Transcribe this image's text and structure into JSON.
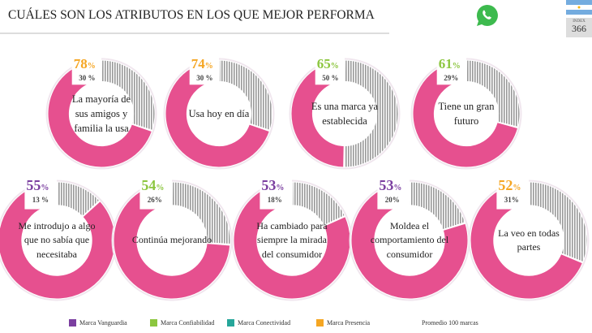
{
  "header": {
    "title": "CUÁLES SON LOS ATRIBUTOS EN LOS QUE MEJOR PERFORMA",
    "index_label": "INDEX",
    "index_value": "366"
  },
  "chart_data": {
    "type": "donut",
    "title": "CUÁLES SON LOS ATRIBUTOS EN LOS QUE MEJOR PERFORMA",
    "colors": {
      "pink": "#e6508f",
      "gray": "#aaaaaa",
      "Marca Vanguardia": "#7b3fa0",
      "Marca Confiabilidad": "#8cc63f",
      "Marca Conectividad": "#26a69a",
      "Marca Presencia": "#f5a623"
    },
    "items": [
      {
        "label": "La mayoría de sus amigos y familia la usa",
        "value": "78",
        "avg": "30",
        "avg_suffix": " %",
        "brand": "Marca Presencia"
      },
      {
        "label": "Usa hoy en día",
        "value": "74",
        "avg": "30",
        "avg_suffix": " %",
        "brand": "Marca Presencia"
      },
      {
        "label": "Es una marca ya establecida",
        "value": "65",
        "avg": "50",
        "avg_suffix": " %",
        "brand": "Marca Confiabilidad"
      },
      {
        "label": "Tiene un gran futuro",
        "value": "61",
        "avg": "29",
        "avg_suffix": "%",
        "brand": "Marca Confiabilidad"
      },
      {
        "label": "Me introdujo a algo que no sabía que necesitaba",
        "value": "55",
        "avg": "13",
        "avg_suffix": " %",
        "brand": "Marca Vanguardia"
      },
      {
        "label": "Continúa mejorando",
        "value": "54",
        "avg": "26",
        "avg_suffix": "%",
        "brand": "Marca Confiabilidad"
      },
      {
        "label": "Ha cambiado para siempre la mirada del consumidor",
        "value": "53",
        "avg": "18",
        "avg_suffix": "%",
        "brand": "Marca Vanguardia"
      },
      {
        "label": "Moldea el comportamiento del consumidor",
        "value": "53",
        "avg": "20",
        "avg_suffix": "%",
        "brand": "Marca Vanguardia"
      },
      {
        "label": "La veo en todas partes",
        "value": "52",
        "avg": "31",
        "avg_suffix": "%",
        "brand": "Marca Presencia"
      }
    ],
    "legend": [
      "Marca Vanguardia",
      "Marca Confiabilidad",
      "Marca Conectividad",
      "Marca Presencia",
      "Promedio 100 marcas"
    ]
  }
}
